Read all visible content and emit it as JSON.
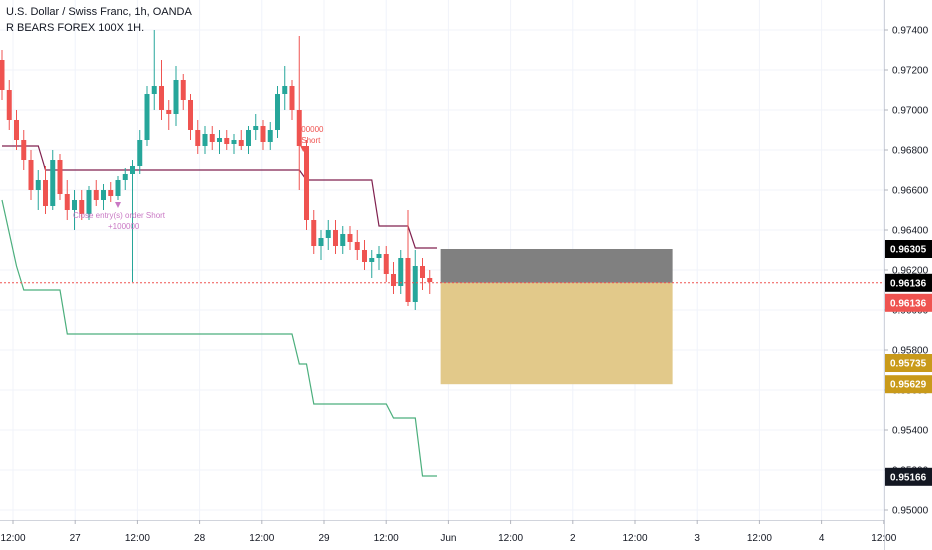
{
  "header": {
    "symbol_line": "U.S. Dollar / Swiss Franc, 1h, OANDA",
    "indicator_line": "R BEARS FOREX 100X 1H."
  },
  "colors": {
    "up": "#26a69a",
    "down": "#ef5350",
    "stop_line": "#80214f",
    "trail_line": "#4caf7d",
    "stop_zone": "#808080",
    "target_zone": "#e2c98a",
    "price_line": "#ef5350",
    "order_marker": "#c978c4"
  },
  "chart_data": {
    "type": "candlestick",
    "y_ticks": [
      "0.97400",
      "0.97200",
      "0.97000",
      "0.96800",
      "0.96600",
      "0.96400",
      "0.96200",
      "0.96000",
      "0.95800",
      "0.95600",
      "0.95400",
      "0.95200",
      "0.95000"
    ],
    "x_ticks": [
      "12:00",
      "27",
      "12:00",
      "28",
      "12:00",
      "29",
      "12:00",
      "Jun",
      "12:00",
      "2",
      "12:00",
      "3",
      "12:00",
      "4",
      "12:00"
    ],
    "ylim": [
      0.9495,
      0.9755
    ],
    "price_badges": [
      {
        "label": "0.96305",
        "value": 0.96305,
        "bg": "#000000",
        "fg": "#ffffff"
      },
      {
        "label": "0.96136",
        "value": 0.96136,
        "bg": "#000000",
        "fg": "#ffffff"
      },
      {
        "label": "0.96136",
        "value": 0.96136,
        "bg": "#ef5350",
        "fg": "#ffffff",
        "offset": 1
      },
      {
        "label": "0.95735",
        "value": 0.95735,
        "bg": "#c99a1a",
        "fg": "#ffffff"
      },
      {
        "label": "0.95629",
        "value": 0.95629,
        "bg": "#c99a1a",
        "fg": "#ffffff"
      },
      {
        "label": "0.95166",
        "value": 0.95166,
        "bg": "#131722",
        "fg": "#ffffff"
      }
    ],
    "position": {
      "entry": 0.96136,
      "stop": 0.96305,
      "target": 0.95629,
      "x_start": 60.5,
      "x_end": 92.5
    },
    "candles": [
      [
        0.9725,
        0.973,
        0.9705,
        0.971
      ],
      [
        0.971,
        0.9715,
        0.969,
        0.9695
      ],
      [
        0.9695,
        0.97,
        0.968,
        0.9685
      ],
      [
        0.9685,
        0.969,
        0.967,
        0.9675
      ],
      [
        0.9675,
        0.968,
        0.9655,
        0.966
      ],
      [
        0.966,
        0.967,
        0.965,
        0.9665
      ],
      [
        0.9665,
        0.9672,
        0.9648,
        0.9652
      ],
      [
        0.9652,
        0.968,
        0.965,
        0.9675
      ],
      [
        0.9675,
        0.9678,
        0.9655,
        0.9658
      ],
      [
        0.9658,
        0.9665,
        0.9645,
        0.965
      ],
      [
        0.965,
        0.966,
        0.964,
        0.9655
      ],
      [
        0.9655,
        0.966,
        0.9645,
        0.9648
      ],
      [
        0.9648,
        0.9662,
        0.9645,
        0.966
      ],
      [
        0.966,
        0.9665,
        0.9652,
        0.9655
      ],
      [
        0.9655,
        0.9663,
        0.965,
        0.966
      ],
      [
        0.966,
        0.9664,
        0.9654,
        0.9657
      ],
      [
        0.9657,
        0.9667,
        0.9655,
        0.9665
      ],
      [
        0.9665,
        0.9671,
        0.966,
        0.9668
      ],
      [
        0.9668,
        0.9675,
        0.9614,
        0.9672
      ],
      [
        0.9672,
        0.969,
        0.9668,
        0.9685
      ],
      [
        0.9685,
        0.9712,
        0.9682,
        0.9708
      ],
      [
        0.9708,
        0.974,
        0.97,
        0.9712
      ],
      [
        0.9712,
        0.9725,
        0.9695,
        0.97
      ],
      [
        0.97,
        0.9705,
        0.969,
        0.9698
      ],
      [
        0.9698,
        0.9722,
        0.9692,
        0.9715
      ],
      [
        0.9715,
        0.9718,
        0.97,
        0.9705
      ],
      [
        0.9705,
        0.9708,
        0.9685,
        0.969
      ],
      [
        0.969,
        0.9695,
        0.9678,
        0.9682
      ],
      [
        0.9682,
        0.9692,
        0.9678,
        0.9688
      ],
      [
        0.9688,
        0.9692,
        0.968,
        0.9684
      ],
      [
        0.9684,
        0.969,
        0.9678,
        0.9686
      ],
      [
        0.9686,
        0.969,
        0.968,
        0.9683
      ],
      [
        0.9683,
        0.9688,
        0.9678,
        0.9685
      ],
      [
        0.9685,
        0.969,
        0.968,
        0.9682
      ],
      [
        0.9682,
        0.9692,
        0.9678,
        0.969
      ],
      [
        0.969,
        0.9698,
        0.9685,
        0.9692
      ],
      [
        0.9692,
        0.9695,
        0.968,
        0.9684
      ],
      [
        0.9684,
        0.9694,
        0.968,
        0.969
      ],
      [
        0.969,
        0.9712,
        0.9686,
        0.9708
      ],
      [
        0.9708,
        0.9722,
        0.97,
        0.9712
      ],
      [
        0.9712,
        0.9715,
        0.9695,
        0.97
      ],
      [
        0.97,
        0.9737,
        0.966,
        0.9682
      ],
      [
        0.9682,
        0.9685,
        0.964,
        0.9645
      ],
      [
        0.9645,
        0.965,
        0.9628,
        0.9632
      ],
      [
        0.9632,
        0.964,
        0.9625,
        0.9636
      ],
      [
        0.9636,
        0.9645,
        0.963,
        0.964
      ],
      [
        0.964,
        0.9645,
        0.9628,
        0.9632
      ],
      [
        0.9632,
        0.9642,
        0.9628,
        0.9638
      ],
      [
        0.9638,
        0.9642,
        0.963,
        0.9634
      ],
      [
        0.9634,
        0.964,
        0.9625,
        0.963
      ],
      [
        0.963,
        0.9635,
        0.962,
        0.9624
      ],
      [
        0.9624,
        0.963,
        0.9616,
        0.9626
      ],
      [
        0.9626,
        0.9632,
        0.962,
        0.9628
      ],
      [
        0.9628,
        0.9632,
        0.9614,
        0.9618
      ],
      [
        0.9618,
        0.9624,
        0.9608,
        0.9612
      ],
      [
        0.9612,
        0.963,
        0.9608,
        0.9626
      ],
      [
        0.9626,
        0.965,
        0.9602,
        0.9604
      ],
      [
        0.9604,
        0.963,
        0.96,
        0.9622
      ],
      [
        0.9622,
        0.9626,
        0.961,
        0.9616
      ],
      [
        0.9616,
        0.962,
        0.9608,
        0.9614
      ]
    ],
    "stop_line": [
      [
        0,
        0.9682
      ],
      [
        5,
        0.9682
      ],
      [
        6,
        0.967
      ],
      [
        28,
        0.967
      ],
      [
        29,
        0.967
      ],
      [
        41,
        0.967
      ],
      [
        42,
        0.9665
      ],
      [
        51,
        0.9665
      ],
      [
        52,
        0.9642
      ],
      [
        56,
        0.9642
      ],
      [
        57,
        0.9631
      ],
      [
        60,
        0.9631
      ]
    ],
    "trail_line": [
      [
        0,
        0.9655
      ],
      [
        2,
        0.9622
      ],
      [
        3,
        0.961
      ],
      [
        8,
        0.961
      ],
      [
        9,
        0.9588
      ],
      [
        40,
        0.9588
      ],
      [
        41,
        0.9573
      ],
      [
        42,
        0.9573
      ],
      [
        43,
        0.9553
      ],
      [
        53,
        0.9553
      ],
      [
        54,
        0.9546
      ],
      [
        57,
        0.9546
      ],
      [
        58,
        0.9517
      ],
      [
        60,
        0.9517
      ]
    ],
    "annotations": {
      "order_text": "Close entry(s) order Short",
      "order_qty": "+100000",
      "short_qty": "00000",
      "short_text": "Short"
    }
  }
}
